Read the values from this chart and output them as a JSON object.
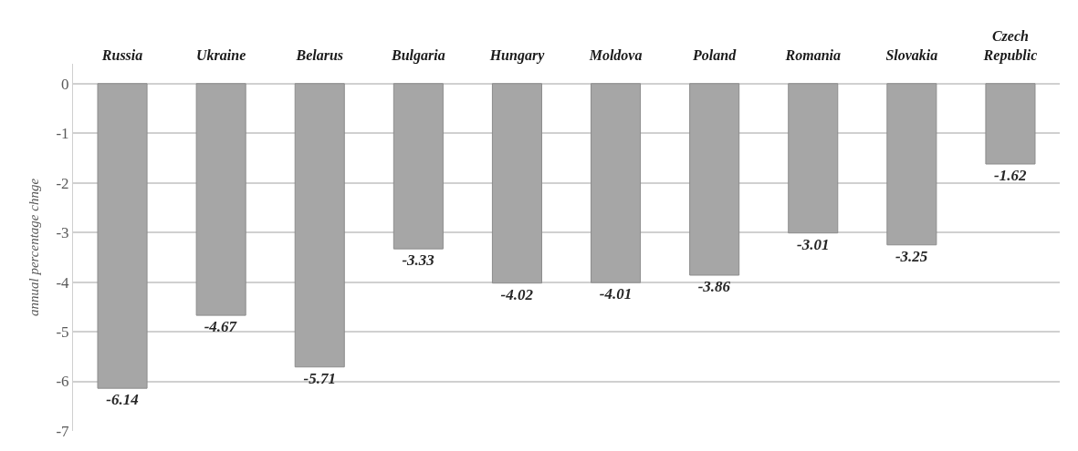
{
  "chart_data": {
    "type": "bar",
    "ylabel": "annual percentage chnge",
    "categories": [
      "Russia",
      "Ukraine",
      "Belarus",
      "Bulgaria",
      "Hungary",
      "Moldova",
      "Poland",
      "Romania",
      "Slovakia",
      "Czech Republic"
    ],
    "values": [
      -6.14,
      -4.67,
      -5.71,
      -3.33,
      -4.02,
      -4.01,
      -3.86,
      -3.01,
      -3.25,
      -1.62
    ],
    "color": "#a6a6a6",
    "ylim": [
      -7,
      0.4
    ],
    "yticks": [
      0,
      -1,
      -2,
      -3,
      -4,
      -5,
      -6,
      -7
    ],
    "grid": "y",
    "data_labels": true
  }
}
